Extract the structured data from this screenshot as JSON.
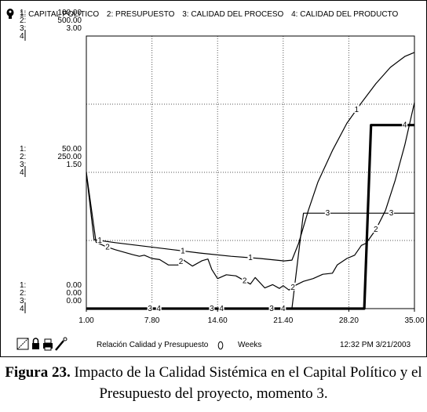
{
  "legend": [
    "1: CAPITAL POLITICO",
    "2: PRESUPUESTO",
    "3: CALIDAD DEL PROCESO",
    "4: CALIDAD DEL PRODUCTO"
  ],
  "footer": {
    "relation": "Relación Calidad y Presupuesto",
    "units": "Weeks",
    "timestamp": "12:32 PM 3/21/2003"
  },
  "caption": {
    "label": "Figura 23.",
    "text": " Impacto de la Calidad Sistémica en el Capital Político y el Presupuesto del proyecto, momento 3."
  },
  "chart_data": {
    "type": "line",
    "xlabel": "Weeks",
    "xlim": [
      1.0,
      35.0
    ],
    "x_ticks": [
      "1.00",
      "7.80",
      "14.60",
      "21.40",
      "28.20",
      "35.00"
    ],
    "grid": true,
    "axis_groups": [
      {
        "series_markers": [
          "1:",
          "2:",
          "3:",
          "4:"
        ],
        "values": [
          "100.00",
          "500.00",
          "3.00",
          ""
        ]
      },
      {
        "series_markers": [
          "1:",
          "2:",
          "3:",
          "4:"
        ],
        "values": [
          "50.00",
          "250.00",
          "1.50",
          ""
        ]
      },
      {
        "series_markers": [
          "1:",
          "2:",
          "3:",
          "4:"
        ],
        "values": [
          "0.00",
          "0.00",
          "0.00",
          ""
        ]
      }
    ],
    "series_axes": [
      {
        "ylim": [
          0,
          100
        ]
      },
      {
        "ylim": [
          0,
          500
        ]
      },
      {
        "ylim": [
          0,
          3
        ]
      },
      {
        "ylim": [
          0,
          3
        ]
      }
    ],
    "series": [
      {
        "label": "1",
        "values": [
          [
            1.0,
            49.7
          ],
          [
            1.8,
            25.3
          ],
          [
            4.0,
            24.2
          ],
          [
            7.0,
            22.9
          ],
          [
            10.0,
            21.6
          ],
          [
            13.0,
            20.3
          ],
          [
            16.0,
            19.2
          ],
          [
            19.0,
            18.4
          ],
          [
            21.5,
            17.5
          ],
          [
            22.3,
            17.8
          ],
          [
            23.0,
            24.0
          ],
          [
            24.0,
            36.0
          ],
          [
            25.0,
            46.5
          ],
          [
            26.5,
            58.0
          ],
          [
            28.0,
            68.0
          ],
          [
            29.5,
            75.5
          ],
          [
            31.0,
            82.5
          ],
          [
            32.5,
            88.5
          ],
          [
            34.0,
            92.5
          ],
          [
            35.0,
            94.0
          ]
        ]
      },
      {
        "label": "2",
        "values": [
          [
            1.0,
            250.0
          ],
          [
            2.0,
            122.0
          ],
          [
            3.0,
            114.0
          ],
          [
            4.0,
            108.0
          ],
          [
            5.0,
            103.0
          ],
          [
            5.8,
            99.0
          ],
          [
            6.5,
            96.0
          ],
          [
            7.0,
            98.0
          ],
          [
            7.8,
            92.0
          ],
          [
            8.6,
            90.0
          ],
          [
            9.5,
            80.0
          ],
          [
            10.5,
            80.0
          ],
          [
            11.0,
            90.0
          ],
          [
            12.0,
            78.0
          ],
          [
            13.0,
            88.0
          ],
          [
            13.6,
            91.0
          ],
          [
            14.0,
            72.0
          ],
          [
            14.6,
            55.0
          ],
          [
            15.5,
            62.0
          ],
          [
            16.5,
            60.0
          ],
          [
            17.3,
            52.0
          ],
          [
            18.0,
            45.0
          ],
          [
            18.5,
            57.0
          ],
          [
            19.5,
            38.0
          ],
          [
            20.3,
            44.0
          ],
          [
            21.0,
            37.0
          ],
          [
            21.4,
            42.0
          ],
          [
            22.0,
            34.0
          ],
          [
            22.8,
            44.0
          ],
          [
            23.5,
            50.0
          ],
          [
            24.5,
            55.0
          ],
          [
            25.5,
            63.0
          ],
          [
            26.5,
            65.0
          ],
          [
            27.0,
            80.0
          ],
          [
            28.0,
            92.0
          ],
          [
            28.8,
            98.0
          ],
          [
            29.5,
            116.0
          ],
          [
            30.0,
            120.0
          ],
          [
            31.0,
            145.0
          ],
          [
            32.0,
            180.0
          ],
          [
            33.0,
            235.0
          ],
          [
            34.0,
            300.0
          ],
          [
            35.0,
            378.0
          ]
        ]
      },
      {
        "label": "3",
        "values": [
          [
            1.0,
            0.0
          ],
          [
            22.3,
            0.0
          ],
          [
            23.5,
            1.05
          ],
          [
            35.0,
            1.05
          ]
        ]
      },
      {
        "label": "4",
        "values": [
          [
            1.0,
            0.0
          ],
          [
            29.8,
            0.0
          ],
          [
            30.5,
            2.02
          ],
          [
            35.0,
            2.02
          ]
        ]
      }
    ]
  }
}
